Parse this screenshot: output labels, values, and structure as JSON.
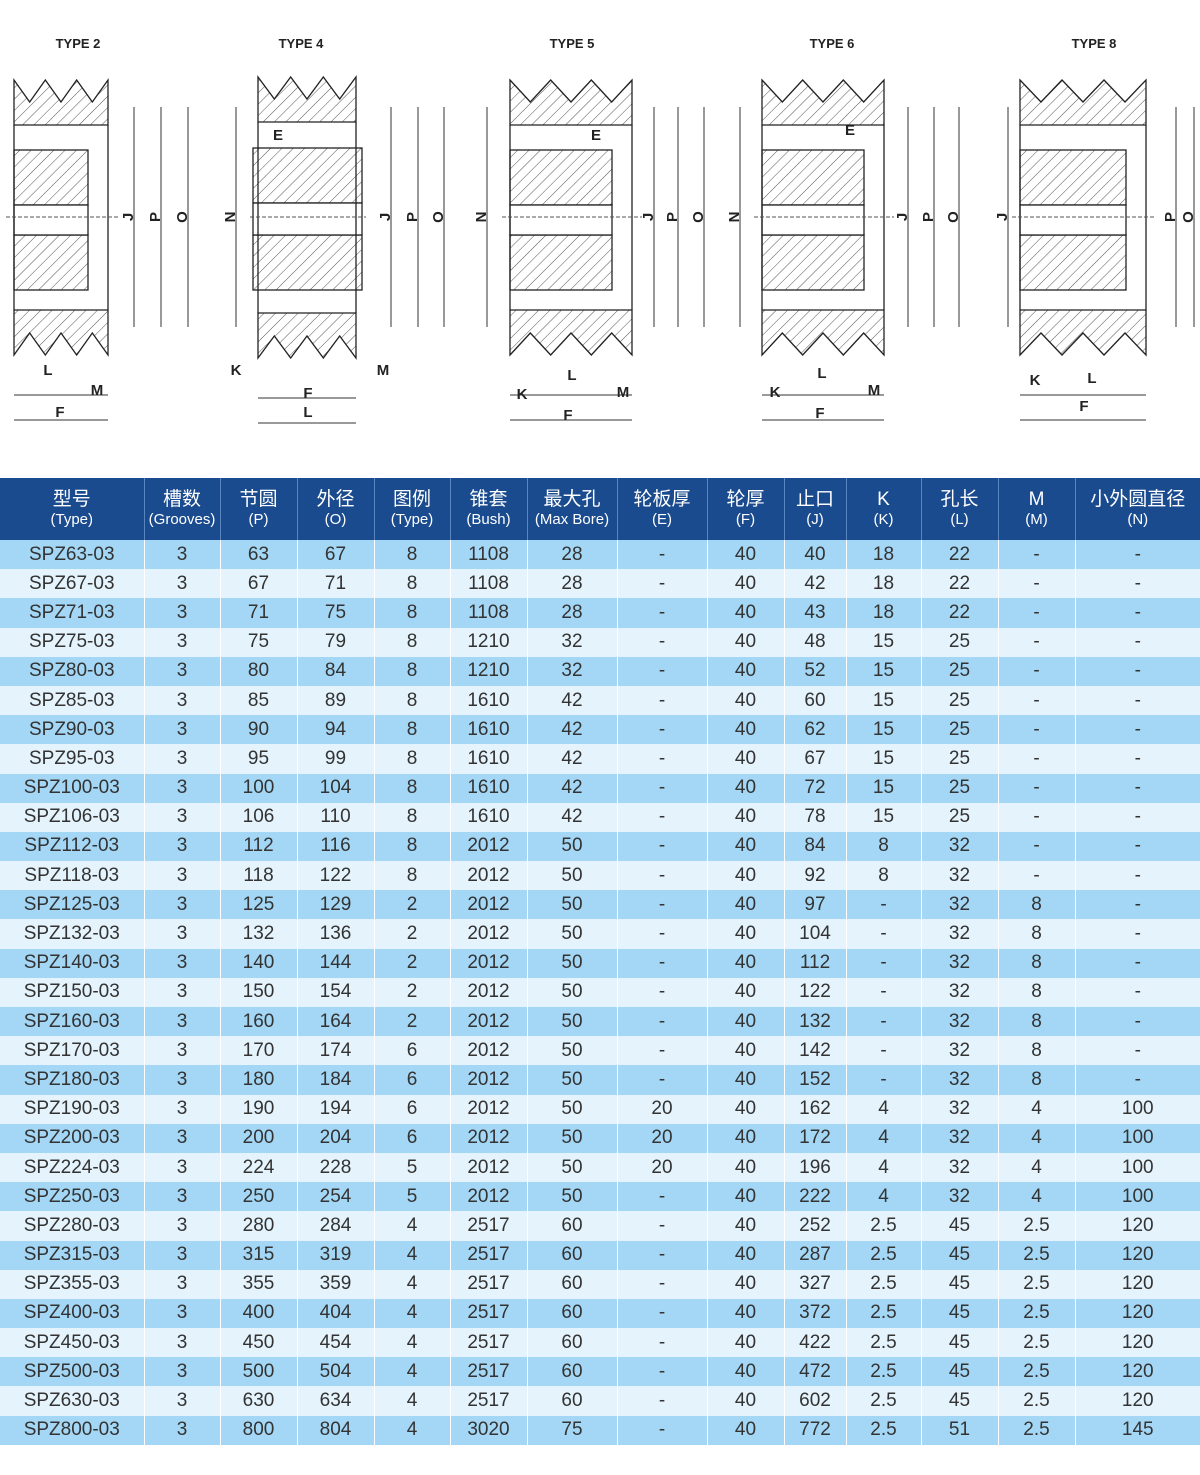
{
  "drawings": [
    {
      "type_label": "TYPE 2",
      "dims": [
        "J",
        "P",
        "O",
        "L",
        "M",
        "F"
      ]
    },
    {
      "type_label": "TYPE 4",
      "dims": [
        "E",
        "N",
        "J",
        "P",
        "O",
        "K",
        "M",
        "F",
        "L"
      ]
    },
    {
      "type_label": "TYPE 5",
      "dims": [
        "E",
        "N",
        "J",
        "P",
        "O",
        "K",
        "L",
        "M",
        "F"
      ]
    },
    {
      "type_label": "TYPE 6",
      "dims": [
        "E",
        "N",
        "J",
        "P",
        "O",
        "K",
        "L",
        "M",
        "F"
      ]
    },
    {
      "type_label": "TYPE 8",
      "dims": [
        "J",
        "P",
        "O",
        "K",
        "L",
        "F"
      ]
    }
  ],
  "colors": {
    "header": "#1a4b8f",
    "row_a": "#a3d7f5",
    "row_b": "#e4f3fc"
  },
  "table": {
    "columns": [
      {
        "cn": "型号",
        "en": "(Type)"
      },
      {
        "cn": "槽数",
        "en": "(Grooves)"
      },
      {
        "cn": "节圆",
        "en": "(P)"
      },
      {
        "cn": "外径",
        "en": "(O)"
      },
      {
        "cn": "图例",
        "en": "(Type)"
      },
      {
        "cn": "锥套",
        "en": "(Bush)"
      },
      {
        "cn": "最大孔",
        "en": "(Max Bore)"
      },
      {
        "cn": "轮板厚",
        "en": "(E)"
      },
      {
        "cn": "轮厚",
        "en": "(F)"
      },
      {
        "cn": "止口",
        "en": "(J)"
      },
      {
        "cn": "K",
        "en": "(K)"
      },
      {
        "cn": "孔长",
        "en": "(L)"
      },
      {
        "cn": "M",
        "en": "(M)"
      },
      {
        "cn": "小外圆直径",
        "en": "(N)"
      }
    ],
    "rows": [
      [
        "SPZ63-03",
        "3",
        "63",
        "67",
        "8",
        "1108",
        "28",
        "-",
        "40",
        "40",
        "18",
        "22",
        "-",
        "-"
      ],
      [
        "SPZ67-03",
        "3",
        "67",
        "71",
        "8",
        "1108",
        "28",
        "-",
        "40",
        "42",
        "18",
        "22",
        "-",
        "-"
      ],
      [
        "SPZ71-03",
        "3",
        "71",
        "75",
        "8",
        "1108",
        "28",
        "-",
        "40",
        "43",
        "18",
        "22",
        "-",
        "-"
      ],
      [
        "SPZ75-03",
        "3",
        "75",
        "79",
        "8",
        "1210",
        "32",
        "-",
        "40",
        "48",
        "15",
        "25",
        "-",
        "-"
      ],
      [
        "SPZ80-03",
        "3",
        "80",
        "84",
        "8",
        "1210",
        "32",
        "-",
        "40",
        "52",
        "15",
        "25",
        "-",
        "-"
      ],
      [
        "SPZ85-03",
        "3",
        "85",
        "89",
        "8",
        "1610",
        "42",
        "-",
        "40",
        "60",
        "15",
        "25",
        "-",
        "-"
      ],
      [
        "SPZ90-03",
        "3",
        "90",
        "94",
        "8",
        "1610",
        "42",
        "-",
        "40",
        "62",
        "15",
        "25",
        "-",
        "-"
      ],
      [
        "SPZ95-03",
        "3",
        "95",
        "99",
        "8",
        "1610",
        "42",
        "-",
        "40",
        "67",
        "15",
        "25",
        "-",
        "-"
      ],
      [
        "SPZ100-03",
        "3",
        "100",
        "104",
        "8",
        "1610",
        "42",
        "-",
        "40",
        "72",
        "15",
        "25",
        "-",
        "-"
      ],
      [
        "SPZ106-03",
        "3",
        "106",
        "110",
        "8",
        "1610",
        "42",
        "-",
        "40",
        "78",
        "15",
        "25",
        "-",
        "-"
      ],
      [
        "SPZ112-03",
        "3",
        "112",
        "116",
        "8",
        "2012",
        "50",
        "-",
        "40",
        "84",
        "8",
        "32",
        "-",
        "-"
      ],
      [
        "SPZ118-03",
        "3",
        "118",
        "122",
        "8",
        "2012",
        "50",
        "-",
        "40",
        "92",
        "8",
        "32",
        "-",
        "-"
      ],
      [
        "SPZ125-03",
        "3",
        "125",
        "129",
        "2",
        "2012",
        "50",
        "-",
        "40",
        "97",
        "-",
        "32",
        "8",
        "-"
      ],
      [
        "SPZ132-03",
        "3",
        "132",
        "136",
        "2",
        "2012",
        "50",
        "-",
        "40",
        "104",
        "-",
        "32",
        "8",
        "-"
      ],
      [
        "SPZ140-03",
        "3",
        "140",
        "144",
        "2",
        "2012",
        "50",
        "-",
        "40",
        "112",
        "-",
        "32",
        "8",
        "-"
      ],
      [
        "SPZ150-03",
        "3",
        "150",
        "154",
        "2",
        "2012",
        "50",
        "-",
        "40",
        "122",
        "-",
        "32",
        "8",
        "-"
      ],
      [
        "SPZ160-03",
        "3",
        "160",
        "164",
        "2",
        "2012",
        "50",
        "-",
        "40",
        "132",
        "-",
        "32",
        "8",
        "-"
      ],
      [
        "SPZ170-03",
        "3",
        "170",
        "174",
        "6",
        "2012",
        "50",
        "-",
        "40",
        "142",
        "-",
        "32",
        "8",
        "-"
      ],
      [
        "SPZ180-03",
        "3",
        "180",
        "184",
        "6",
        "2012",
        "50",
        "-",
        "40",
        "152",
        "-",
        "32",
        "8",
        "-"
      ],
      [
        "SPZ190-03",
        "3",
        "190",
        "194",
        "6",
        "2012",
        "50",
        "20",
        "40",
        "162",
        "4",
        "32",
        "4",
        "100"
      ],
      [
        "SPZ200-03",
        "3",
        "200",
        "204",
        "6",
        "2012",
        "50",
        "20",
        "40",
        "172",
        "4",
        "32",
        "4",
        "100"
      ],
      [
        "SPZ224-03",
        "3",
        "224",
        "228",
        "5",
        "2012",
        "50",
        "20",
        "40",
        "196",
        "4",
        "32",
        "4",
        "100"
      ],
      [
        "SPZ250-03",
        "3",
        "250",
        "254",
        "5",
        "2012",
        "50",
        "-",
        "40",
        "222",
        "4",
        "32",
        "4",
        "100"
      ],
      [
        "SPZ280-03",
        "3",
        "280",
        "284",
        "4",
        "2517",
        "60",
        "-",
        "40",
        "252",
        "2.5",
        "45",
        "2.5",
        "120"
      ],
      [
        "SPZ315-03",
        "3",
        "315",
        "319",
        "4",
        "2517",
        "60",
        "-",
        "40",
        "287",
        "2.5",
        "45",
        "2.5",
        "120"
      ],
      [
        "SPZ355-03",
        "3",
        "355",
        "359",
        "4",
        "2517",
        "60",
        "-",
        "40",
        "327",
        "2.5",
        "45",
        "2.5",
        "120"
      ],
      [
        "SPZ400-03",
        "3",
        "400",
        "404",
        "4",
        "2517",
        "60",
        "-",
        "40",
        "372",
        "2.5",
        "45",
        "2.5",
        "120"
      ],
      [
        "SPZ450-03",
        "3",
        "450",
        "454",
        "4",
        "2517",
        "60",
        "-",
        "40",
        "422",
        "2.5",
        "45",
        "2.5",
        "120"
      ],
      [
        "SPZ500-03",
        "3",
        "500",
        "504",
        "4",
        "2517",
        "60",
        "-",
        "40",
        "472",
        "2.5",
        "45",
        "2.5",
        "120"
      ],
      [
        "SPZ630-03",
        "3",
        "630",
        "634",
        "4",
        "2517",
        "60",
        "-",
        "40",
        "602",
        "2.5",
        "45",
        "2.5",
        "120"
      ],
      [
        "SPZ800-03",
        "3",
        "800",
        "804",
        "4",
        "3020",
        "75",
        "-",
        "40",
        "772",
        "2.5",
        "51",
        "2.5",
        "145"
      ]
    ]
  }
}
